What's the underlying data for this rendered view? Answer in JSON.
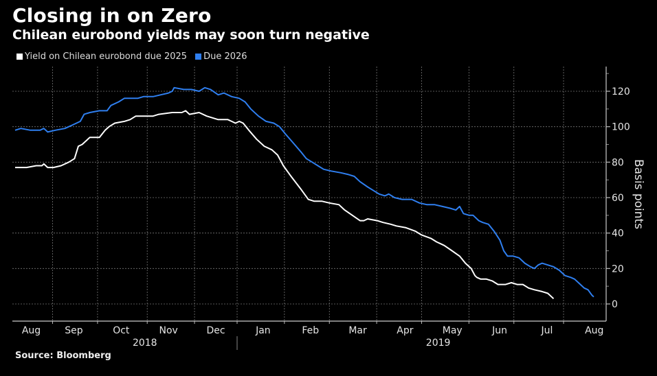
{
  "header": {
    "title": "Closing in on Zero",
    "subtitle": "Chilean eurobond yields may soon turn negative"
  },
  "footer": {
    "source": "Source: Bloomberg"
  },
  "chart_data": {
    "type": "line",
    "title": "Closing in on Zero",
    "subtitle": "Chilean eurobond yields may soon turn negative",
    "xlabel": "",
    "ylabel": "Basis points",
    "ylim": [
      -10,
      135
    ],
    "yticks": [
      0,
      20,
      40,
      60,
      80,
      100,
      120
    ],
    "y_axis_side": "right",
    "grid": true,
    "legend_position": "top-left",
    "x_unit": "month index (0 = start of Aug 2018 window, fractional)",
    "xlim": [
      0,
      12.55
    ],
    "month_ticks": [
      {
        "label": "Aug",
        "x": 0.4
      },
      {
        "label": "Sep",
        "x": 1.3
      },
      {
        "label": "Oct",
        "x": 2.3
      },
      {
        "label": "Nov",
        "x": 3.3
      },
      {
        "label": "Dec",
        "x": 4.3
      },
      {
        "label": "Jan",
        "x": 5.3
      },
      {
        "label": "Feb",
        "x": 6.3
      },
      {
        "label": "Mar",
        "x": 7.3
      },
      {
        "label": "Apr",
        "x": 8.3
      },
      {
        "label": "May",
        "x": 9.3
      },
      {
        "label": "Jun",
        "x": 10.3
      },
      {
        "label": "Jul",
        "x": 11.3
      },
      {
        "label": "Aug",
        "x": 12.3
      }
    ],
    "month_dividers": [
      0.85,
      1.8,
      2.85,
      3.85,
      4.75,
      5.75,
      6.7,
      7.7,
      8.65,
      9.65,
      10.6,
      11.65
    ],
    "year_labels": [
      {
        "label": "2018",
        "x": 2.8
      },
      {
        "label": "2019",
        "x": 9.0
      }
    ],
    "year_divider": 4.75,
    "series": [
      {
        "name": "Yield on Chilean eurobond due 2025",
        "color": "#ffffff",
        "points": [
          [
            0.0,
            77
          ],
          [
            0.3,
            77
          ],
          [
            0.55,
            78
          ],
          [
            0.7,
            78
          ],
          [
            0.75,
            79
          ],
          [
            0.85,
            77
          ],
          [
            1.0,
            77
          ],
          [
            1.2,
            78
          ],
          [
            1.4,
            80
          ],
          [
            1.55,
            82
          ],
          [
            1.65,
            89
          ],
          [
            1.75,
            90
          ],
          [
            1.95,
            94
          ],
          [
            2.2,
            94
          ],
          [
            2.35,
            98
          ],
          [
            2.45,
            100
          ],
          [
            2.6,
            102
          ],
          [
            2.85,
            103
          ],
          [
            3.0,
            104
          ],
          [
            3.15,
            106
          ],
          [
            3.4,
            106
          ],
          [
            3.6,
            106
          ],
          [
            3.75,
            107
          ],
          [
            4.1,
            108
          ],
          [
            4.35,
            108
          ],
          [
            4.45,
            109
          ],
          [
            4.55,
            107
          ],
          [
            4.8,
            108
          ],
          [
            5.0,
            106
          ],
          [
            5.3,
            104
          ],
          [
            5.55,
            104
          ],
          [
            5.65,
            103
          ],
          [
            5.75,
            102
          ],
          [
            5.85,
            103
          ],
          [
            5.95,
            102
          ],
          [
            6.1,
            98
          ],
          [
            6.3,
            93
          ],
          [
            6.5,
            89
          ],
          [
            6.7,
            87
          ],
          [
            6.85,
            84
          ],
          [
            7.0,
            78
          ],
          [
            7.2,
            72
          ],
          [
            7.45,
            65
          ],
          [
            7.65,
            59
          ],
          [
            7.8,
            58
          ],
          [
            8.0,
            58
          ],
          [
            8.2,
            57
          ],
          [
            8.45,
            56
          ],
          [
            8.6,
            53
          ],
          [
            8.8,
            50
          ],
          [
            9.0,
            47
          ],
          [
            9.1,
            47
          ],
          [
            9.2,
            48
          ],
          [
            9.45,
            47
          ],
          [
            9.6,
            46
          ],
          [
            9.8,
            45
          ],
          [
            9.95,
            44
          ],
          [
            10.2,
            43
          ],
          [
            10.45,
            41
          ],
          [
            10.6,
            39
          ],
          [
            10.85,
            37
          ],
          [
            11.0,
            35
          ],
          [
            11.1,
            34
          ],
          [
            11.2,
            33
          ],
          [
            11.4,
            30
          ],
          [
            11.6,
            27
          ],
          [
            11.75,
            23
          ],
          [
            11.9,
            20
          ],
          [
            12.0,
            16
          ],
          [
            12.05,
            15
          ],
          [
            12.15,
            14
          ],
          [
            12.3,
            14
          ],
          [
            12.45,
            13
          ],
          [
            12.6,
            11
          ],
          [
            12.8,
            11
          ],
          [
            12.95,
            12
          ],
          [
            13.1,
            11
          ],
          [
            13.25,
            11
          ],
          [
            13.4,
            9
          ],
          [
            13.55,
            8
          ],
          [
            13.75,
            7
          ],
          [
            13.9,
            6
          ],
          [
            14.0,
            4
          ],
          [
            14.05,
            3
          ]
        ]
      },
      {
        "name": "Due 2026",
        "color": "#2f7ff0",
        "points": [
          [
            0.0,
            98
          ],
          [
            0.15,
            99
          ],
          [
            0.4,
            98
          ],
          [
            0.65,
            98
          ],
          [
            0.75,
            99
          ],
          [
            0.85,
            97
          ],
          [
            1.05,
            98
          ],
          [
            1.3,
            99
          ],
          [
            1.5,
            101
          ],
          [
            1.7,
            103
          ],
          [
            1.8,
            107
          ],
          [
            1.95,
            108
          ],
          [
            2.2,
            109
          ],
          [
            2.4,
            109
          ],
          [
            2.5,
            112
          ],
          [
            2.7,
            114
          ],
          [
            2.85,
            116
          ],
          [
            3.0,
            116
          ],
          [
            3.2,
            116
          ],
          [
            3.35,
            117
          ],
          [
            3.6,
            117
          ],
          [
            3.8,
            118
          ],
          [
            4.0,
            119
          ],
          [
            4.1,
            120
          ],
          [
            4.15,
            122
          ],
          [
            4.4,
            121
          ],
          [
            4.6,
            121
          ],
          [
            4.8,
            120
          ],
          [
            4.95,
            122
          ],
          [
            5.1,
            121
          ],
          [
            5.3,
            118
          ],
          [
            5.45,
            119
          ],
          [
            5.65,
            117
          ],
          [
            5.85,
            116
          ],
          [
            6.0,
            114
          ],
          [
            6.15,
            110
          ],
          [
            6.35,
            106
          ],
          [
            6.55,
            103
          ],
          [
            6.75,
            102
          ],
          [
            6.9,
            100
          ],
          [
            7.05,
            96
          ],
          [
            7.25,
            91
          ],
          [
            7.45,
            86
          ],
          [
            7.6,
            82
          ],
          [
            7.75,
            80
          ],
          [
            7.9,
            78
          ],
          [
            8.05,
            76
          ],
          [
            8.25,
            75
          ],
          [
            8.5,
            74
          ],
          [
            8.7,
            73
          ],
          [
            8.85,
            72
          ],
          [
            9.0,
            69
          ],
          [
            9.2,
            66
          ],
          [
            9.35,
            64
          ],
          [
            9.5,
            62
          ],
          [
            9.65,
            61
          ],
          [
            9.75,
            62
          ],
          [
            9.9,
            60
          ],
          [
            10.1,
            59
          ],
          [
            10.35,
            59
          ],
          [
            10.55,
            57
          ],
          [
            10.75,
            56
          ],
          [
            10.95,
            56
          ],
          [
            11.15,
            55
          ],
          [
            11.35,
            54
          ],
          [
            11.5,
            53
          ],
          [
            11.6,
            55
          ],
          [
            11.7,
            51
          ],
          [
            11.85,
            50
          ],
          [
            11.95,
            50
          ],
          [
            12.1,
            47
          ],
          [
            12.2,
            46
          ],
          [
            12.35,
            45
          ],
          [
            12.5,
            41
          ],
          [
            12.65,
            36
          ],
          [
            12.75,
            30
          ],
          [
            12.85,
            27
          ],
          [
            13.0,
            27
          ],
          [
            13.15,
            26
          ],
          [
            13.3,
            23
          ],
          [
            13.45,
            21
          ],
          [
            13.55,
            20
          ],
          [
            13.65,
            22
          ],
          [
            13.75,
            23
          ],
          [
            13.9,
            22
          ],
          [
            14.05,
            21
          ],
          [
            14.2,
            19
          ],
          [
            14.35,
            16
          ],
          [
            14.5,
            15
          ],
          [
            14.6,
            14
          ],
          [
            14.75,
            11
          ],
          [
            14.85,
            9
          ],
          [
            14.95,
            8
          ],
          [
            15.05,
            5
          ],
          [
            15.1,
            4
          ]
        ]
      }
    ]
  }
}
